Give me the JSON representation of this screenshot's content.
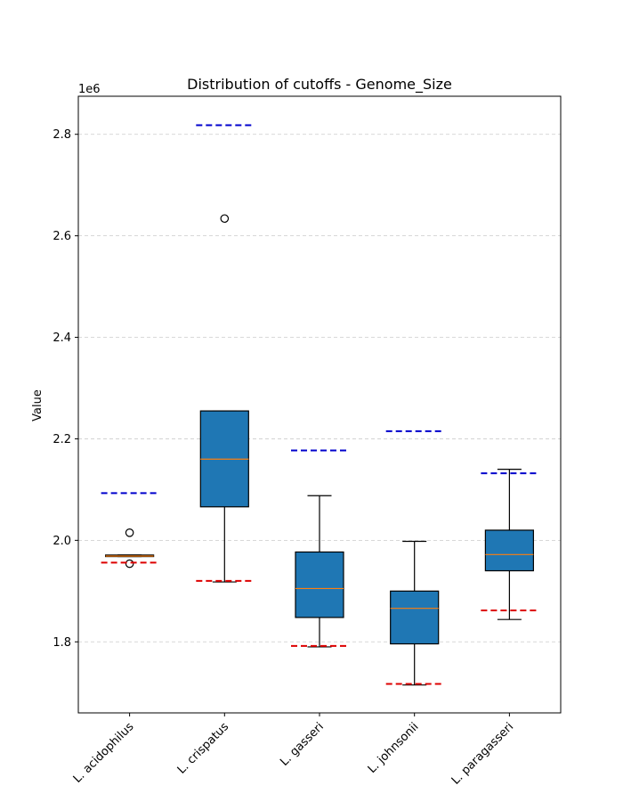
{
  "chart_data": {
    "type": "box",
    "title": "Distribution of cutoffs - Genome_Size",
    "xlabel": "",
    "ylabel": "Value",
    "y_offset_label": "1e6",
    "ylim": [
      1.66,
      2.875
    ],
    "y_ticks": [
      1.8,
      2.0,
      2.2,
      2.4,
      2.6,
      2.8
    ],
    "y_tick_labels": [
      "1.8",
      "2.0",
      "2.2",
      "2.4",
      "2.6",
      "2.8"
    ],
    "y_unit_multiplier": 1000000,
    "grid": {
      "y": true,
      "x": false,
      "style": "dashed"
    },
    "colors": {
      "box_fill": "#1f77b4",
      "median": "#ff7f0e",
      "upper_cutoff": "#0000cc",
      "lower_cutoff": "#dd0000",
      "grid": "#cccccc"
    },
    "categories": [
      "L. acidophilus",
      "L. crispatus",
      "L. gasseri",
      "L. johnsonii",
      "L. paragasseri"
    ],
    "boxes": [
      {
        "name": "L. acidophilus",
        "whisker_low": 1.968,
        "q1": 1.968,
        "median": 1.969,
        "q3": 1.971,
        "whisker_high": 1.971,
        "outliers": [
          2.015,
          1.954
        ],
        "cutoff_upper": 2.093,
        "cutoff_lower": 1.956
      },
      {
        "name": "L. crispatus",
        "whisker_low": 1.918,
        "q1": 2.066,
        "median": 2.16,
        "q3": 2.255,
        "whisker_high": 2.255,
        "outliers": [
          2.634
        ],
        "cutoff_upper": 2.818,
        "cutoff_lower": 1.92
      },
      {
        "name": "L. gasseri",
        "whisker_low": 1.79,
        "q1": 1.848,
        "median": 1.905,
        "q3": 1.977,
        "whisker_high": 2.088,
        "outliers": [],
        "cutoff_upper": 2.177,
        "cutoff_lower": 1.792
      },
      {
        "name": "L. johnsonii",
        "whisker_low": 1.715,
        "q1": 1.796,
        "median": 1.866,
        "q3": 1.9,
        "whisker_high": 1.998,
        "outliers": [],
        "cutoff_upper": 2.215,
        "cutoff_lower": 1.717
      },
      {
        "name": "L. paragasseri",
        "whisker_low": 1.844,
        "q1": 1.94,
        "median": 1.972,
        "q3": 2.02,
        "whisker_high": 2.14,
        "outliers": [],
        "cutoff_upper": 2.132,
        "cutoff_lower": 1.862
      }
    ]
  }
}
